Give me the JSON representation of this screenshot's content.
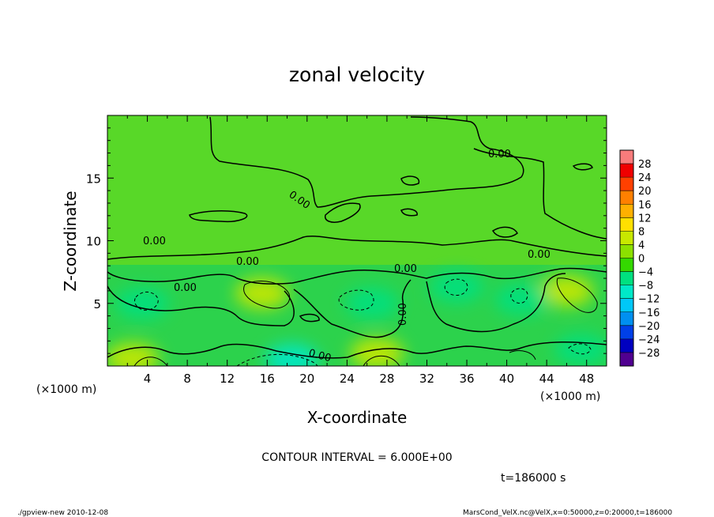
{
  "chart_data": {
    "type": "heatmap",
    "title": "zonal velocity",
    "xlabel": "X-coordinate",
    "ylabel": "Z-coordinate",
    "x_unit": "(×1000 m)",
    "y_unit": "(×1000 m)",
    "xlim": [
      0,
      50
    ],
    "ylim": [
      0,
      20
    ],
    "x_ticks": [
      4,
      8,
      12,
      16,
      20,
      24,
      28,
      32,
      36,
      40,
      44,
      48
    ],
    "y_ticks": [
      5,
      10,
      15
    ],
    "colorbar": {
      "levels": [
        28,
        24,
        20,
        16,
        12,
        8,
        4,
        0,
        -4,
        -8,
        -12,
        -16,
        -20,
        -24,
        -28
      ],
      "colors": [
        "#f87c7c",
        "#f00000",
        "#ff4000",
        "#ff8000",
        "#ffb000",
        "#ffe000",
        "#c8e800",
        "#8ce000",
        "#34d800",
        "#00e080",
        "#00e8c8",
        "#00c8f8",
        "#0090f0",
        "#0040e8",
        "#0000c0",
        "#500090"
      ]
    },
    "contour_interval": "CONTOUR INTERVAL = 6.000E+00",
    "contour_labels": [
      "0.00",
      "0.00",
      "0.00",
      "0.00",
      "0.00",
      "0.00",
      "0.00",
      "0.00",
      "0.00"
    ],
    "field_blobs": [
      {
        "x": 15.5,
        "z": 5.8,
        "value": 5,
        "kind": "max"
      },
      {
        "x": 27.0,
        "z": 1.0,
        "value": 4,
        "kind": "max"
      },
      {
        "x": 2.5,
        "z": 0.6,
        "value": 5,
        "kind": "max"
      },
      {
        "x": 46.0,
        "z": 6.0,
        "value": 5,
        "kind": "max"
      },
      {
        "x": 18.5,
        "z": 0.5,
        "value": -10,
        "kind": "min"
      },
      {
        "x": 3.5,
        "z": 5.0,
        "value": -6,
        "kind": "min"
      },
      {
        "x": 26.5,
        "z": 5.0,
        "value": -6,
        "kind": "min"
      },
      {
        "x": 35.0,
        "z": 6.3,
        "value": -6,
        "kind": "min"
      },
      {
        "x": 41.5,
        "z": 5.3,
        "value": -6,
        "kind": "min"
      },
      {
        "x": 47.5,
        "z": 1.3,
        "value": -6,
        "kind": "min"
      }
    ],
    "time_label": "t=186000 s"
  },
  "footer": {
    "left": "./gpview-new  2010-12-08",
    "right": "MarsCond_VelX.nc@VelX,x=0:50000,z=0:20000,t=186000"
  }
}
